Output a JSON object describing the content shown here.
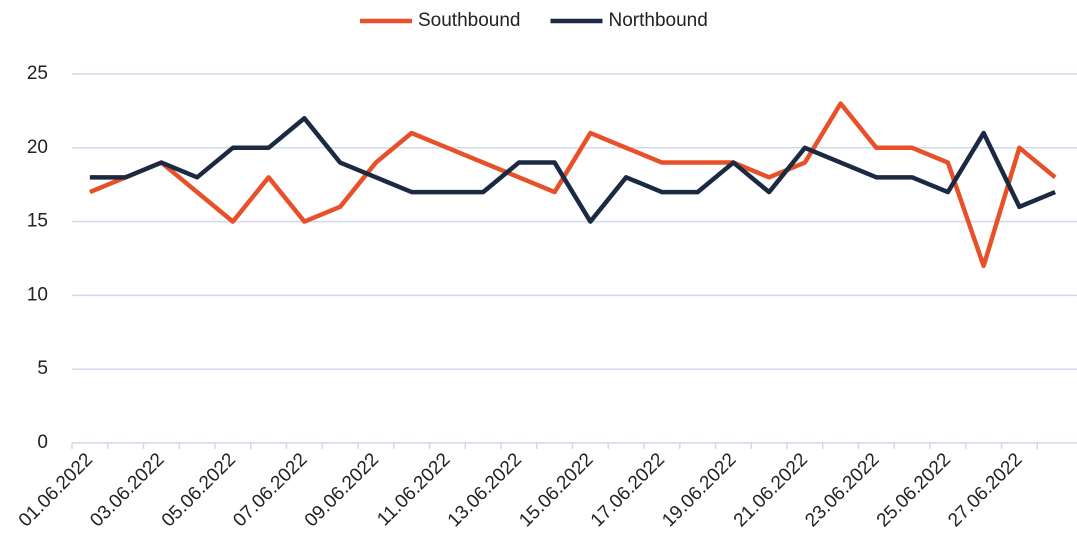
{
  "chart_data": {
    "type": "line",
    "categories": [
      "01.06.2022",
      null,
      "03.06.2022",
      null,
      "05.06.2022",
      null,
      "07.06.2022",
      null,
      "09.06.2022",
      null,
      "11.06.2022",
      null,
      "13.06.2022",
      null,
      "15.06.2022",
      null,
      "17.06.2022",
      null,
      "19.06.2022",
      null,
      "21.06.2022",
      null,
      "23.06.2022",
      null,
      "25.06.2022",
      null,
      "27.06.2022",
      null
    ],
    "series": [
      {
        "name": "Southbound",
        "color": "#e8502a",
        "values": [
          17,
          18,
          19,
          17,
          15,
          18,
          15,
          16,
          19,
          21,
          20,
          19,
          18,
          17,
          21,
          20,
          19,
          19,
          19,
          18,
          19,
          23,
          20,
          20,
          19,
          12,
          20,
          18
        ]
      },
      {
        "name": "Northbound",
        "color": "#1b2a42",
        "values": [
          18,
          18,
          19,
          18,
          20,
          20,
          22,
          19,
          18,
          17,
          17,
          17,
          19,
          19,
          15,
          18,
          17,
          17,
          19,
          17,
          20,
          19,
          18,
          18,
          17,
          21,
          16,
          17
        ]
      }
    ],
    "ylim": [
      0,
      25
    ],
    "yticks": [
      0,
      5,
      10,
      15,
      20,
      25
    ],
    "grid": true,
    "legend": "top"
  }
}
